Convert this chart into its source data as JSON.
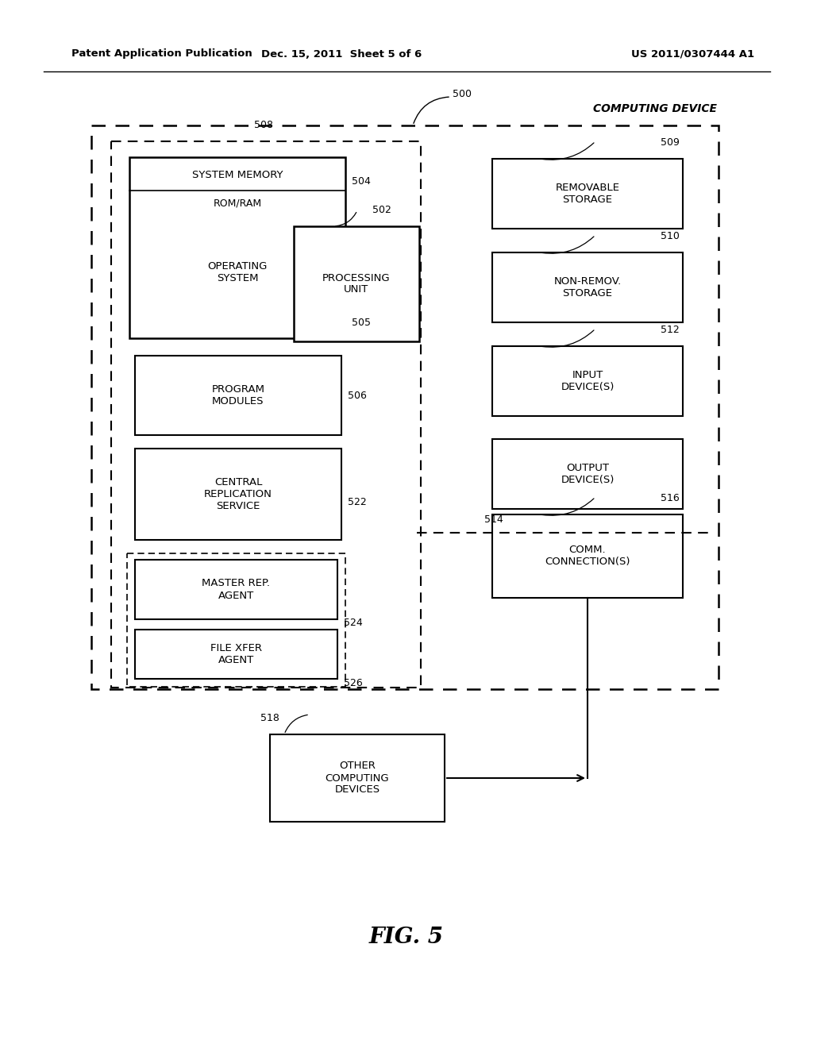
{
  "header_left": "Patent Application Publication",
  "header_mid": "Dec. 15, 2011  Sheet 5 of 6",
  "header_right": "US 2011/0307444 A1",
  "fig_label": "FIG. 5",
  "computing_device_label": "COMPUTING DEVICE",
  "label_500": "500",
  "label_508": "508",
  "label_509": "509",
  "label_510": "510",
  "label_512": "512",
  "label_514": "514",
  "label_516": "516",
  "label_518": "518",
  "label_502": "502",
  "label_504": "504",
  "label_505": "505",
  "label_506": "506",
  "label_522": "522",
  "label_524": "524",
  "label_526": "526",
  "box_system_memory": "SYSTEM MEMORY",
  "box_rom_ram": "ROM/RAM",
  "box_os": "OPERATING\nSYSTEM",
  "box_processing_unit": "PROCESSING\nUNIT",
  "box_program_modules": "PROGRAM\nMODULES",
  "box_central_rep": "CENTRAL\nREPLICATION\nSERVICE",
  "box_master_rep": "MASTER REP.\nAGENT",
  "box_file_xfer": "FILE XFER\nAGENT",
  "box_removable": "REMOVABLE\nSTORAGE",
  "box_non_remov": "NON-REMOV.\nSTORAGE",
  "box_input": "INPUT\nDEVICE(S)",
  "box_output": "OUTPUT\nDEVICE(S)",
  "box_comm": "COMM.\nCONNECTION(S)",
  "box_other": "OTHER\nCOMPUTING\nDEVICES",
  "background_color": "#ffffff",
  "line_color": "#000000"
}
